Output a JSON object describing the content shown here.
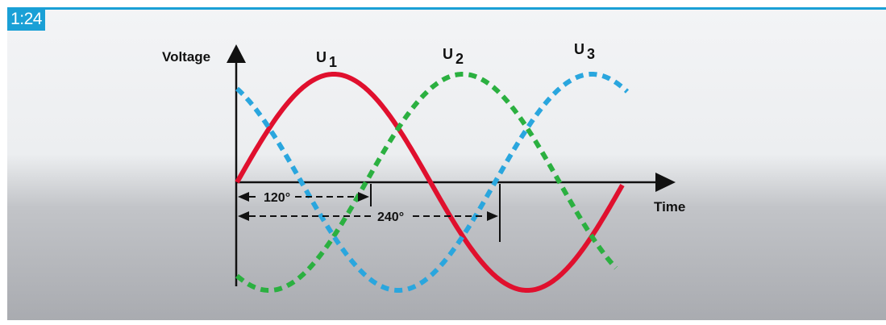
{
  "figure_number": "1:24",
  "diagram": {
    "y_axis_label": "Voltage",
    "x_axis_label": "Time",
    "curves": [
      {
        "name": "U",
        "subscript": "1",
        "color": "#e0102e",
        "style": "solid"
      },
      {
        "name": "U",
        "subscript": "2",
        "color": "#2bb040",
        "style": "dashed"
      },
      {
        "name": "U",
        "subscript": "3",
        "color": "#2aa6de",
        "style": "dashed"
      }
    ],
    "phase_shifts": [
      {
        "label": "120°",
        "degrees": 120
      },
      {
        "label": "240°",
        "degrees": 240
      }
    ]
  }
}
